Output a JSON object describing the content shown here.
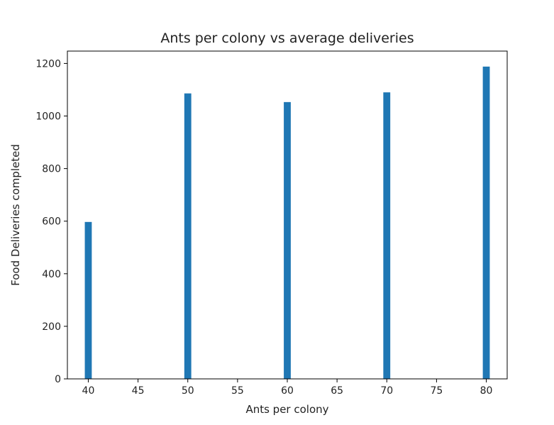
{
  "chart_data": {
    "type": "bar",
    "title": "Ants per colony vs average deliveries",
    "xlabel": "Ants per colony",
    "ylabel": "Food Deliveries completed",
    "x": [
      40,
      50,
      60,
      70,
      80
    ],
    "values": [
      597,
      1086,
      1053,
      1090,
      1188
    ],
    "xlim": [
      37.9,
      82.1
    ],
    "ylim": [
      0,
      1247
    ],
    "bar_width": 0.7,
    "xticks": [
      40,
      45,
      50,
      55,
      60,
      65,
      70,
      75,
      80
    ],
    "yticks": [
      0,
      200,
      400,
      600,
      800,
      1000,
      1200
    ],
    "grid": false,
    "bar_color": "#1f77b4"
  }
}
